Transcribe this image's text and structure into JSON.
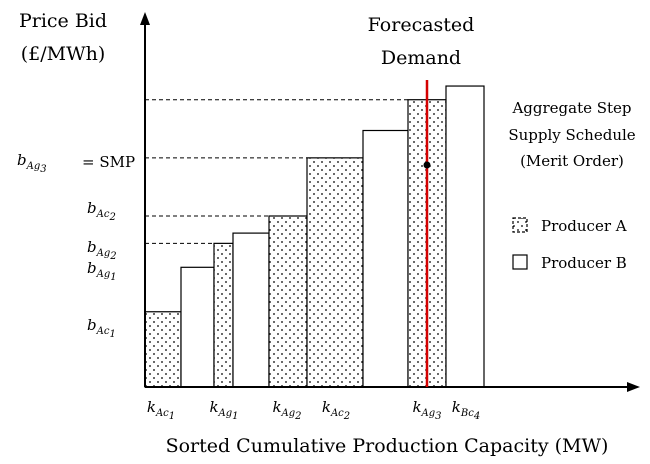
{
  "texts": {
    "y_axis_line1": "Price Bid",
    "y_axis_line2": "(£/MWh)",
    "x_axis": "Sorted Cumulative Production Capacity (MW)",
    "forecast_line1": "Forecasted",
    "forecast_line2": "Demand",
    "schedule_line1": "Aggregate Step",
    "schedule_line2": "Supply Schedule",
    "schedule_line3": "(Merit Order)",
    "legend_a": "Producer A",
    "legend_b": "Producer B",
    "smp_suffix": "= SMP"
  },
  "price_labels": [
    {
      "base": "b",
      "sub": "Ac",
      "sub2": "1"
    },
    {
      "base": "b",
      "sub": "Ag",
      "sub2": "1"
    },
    {
      "base": "b",
      "sub": "Ag",
      "sub2": "2"
    },
    {
      "base": "b",
      "sub": "Ac",
      "sub2": "2"
    },
    {
      "base": "b",
      "sub": "Ag",
      "sub2": "3"
    }
  ],
  "capacity_labels": [
    {
      "base": "k",
      "sub": "Ac",
      "sub2": "1"
    },
    {
      "base": "k",
      "sub": "Ag",
      "sub2": "1"
    },
    {
      "base": "k",
      "sub": "Ag",
      "sub2": "2"
    },
    {
      "base": "k",
      "sub": "Ac",
      "sub2": "2"
    },
    {
      "base": "k",
      "sub": "Ag",
      "sub2": "3"
    },
    {
      "base": "k",
      "sub": "Bc",
      "sub2": "4"
    }
  ],
  "blocks": [
    {
      "producer": "A",
      "level": 0.22
    },
    {
      "producer": "B",
      "level": 0.35
    },
    {
      "producer": "A",
      "level": 0.42
    },
    {
      "producer": "B",
      "level": 0.45
    },
    {
      "producer": "A",
      "level": 0.5
    },
    {
      "producer": "A",
      "level": 0.67
    },
    {
      "producer": "B",
      "level": 0.75
    },
    {
      "producer": "A",
      "level": 0.84
    },
    {
      "producer": "B",
      "level": 0.88
    }
  ],
  "colors": {
    "demand_line": "#d40000",
    "stroke": "#000000"
  }
}
